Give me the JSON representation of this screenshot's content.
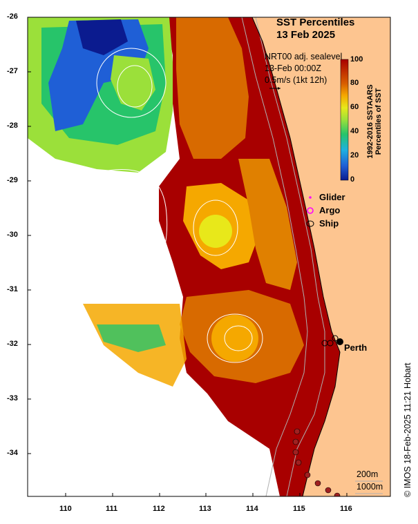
{
  "title": {
    "line1": "SST Percentiles",
    "line2": "13 Feb 2025"
  },
  "info": {
    "line1": "NRT00 adj. sealevel",
    "line2": "13-Feb 00:00Z",
    "line3": "0.5m/s (1kt 12h)"
  },
  "colorbar": {
    "label_line1": "1992-2016 SSTAARS",
    "label_line2": "Percentiles of SST",
    "ticks": [
      "100",
      "80",
      "60",
      "40",
      "20",
      "0"
    ],
    "colors": [
      "#0b1b8f",
      "#1f5fd6",
      "#1fb1e0",
      "#27c46a",
      "#9be03a",
      "#e8e81a",
      "#f5a800",
      "#d85e00",
      "#a80000"
    ]
  },
  "legend": {
    "glider": "Glider",
    "argo": "Argo",
    "ship": "Ship"
  },
  "place_label": "Perth",
  "scale": {
    "line1": "200m",
    "line2": "1000m"
  },
  "credit": "© IMOS 18-Feb-2025 11:21 Hobart",
  "axes": {
    "x_ticks": [
      "110",
      "111",
      "112",
      "113",
      "114",
      "115",
      "116"
    ],
    "y_ticks": [
      "-26",
      "-27",
      "-28",
      "-29",
      "-30",
      "-31",
      "-32",
      "-33",
      "-34"
    ]
  }
}
